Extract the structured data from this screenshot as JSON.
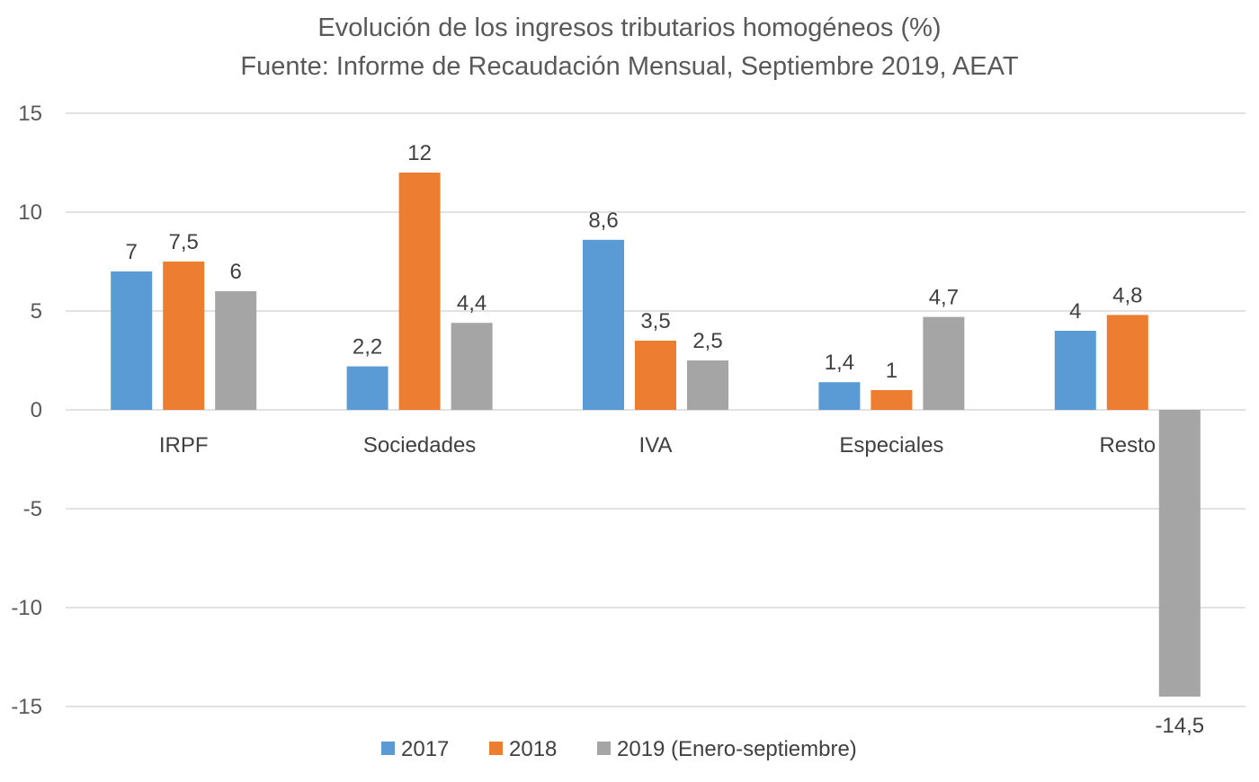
{
  "chart_data": {
    "type": "bar",
    "title": "Evolución de los ingresos tributarios homogéneos (%)",
    "subtitle": "Fuente: Informe de Recaudación Mensual, Septiembre 2019, AEAT",
    "xlabel": "",
    "ylabel": "",
    "ylim": [
      -15,
      15
    ],
    "yticks": [
      15,
      10,
      5,
      0,
      -5,
      -10,
      -15
    ],
    "ytick_labels": [
      "15",
      "10",
      "5",
      "0",
      "-5",
      "-10",
      "-15"
    ],
    "grid": true,
    "legend_position": "bottom",
    "categories": [
      "IRPF",
      "Sociedades",
      "IVA",
      "Especiales",
      "Resto"
    ],
    "series": [
      {
        "name": "2017",
        "color": "#5b9bd5",
        "values": [
          7,
          2.2,
          8.6,
          1.4,
          4
        ],
        "labels": [
          "7",
          "2,2",
          "8,6",
          "1,4",
          "4"
        ]
      },
      {
        "name": "2018",
        "color": "#ed7d31",
        "values": [
          7.5,
          12,
          3.5,
          1,
          4.8
        ],
        "labels": [
          "7,5",
          "12",
          "3,5",
          "1",
          "4,8"
        ]
      },
      {
        "name": "2019 (Enero-septiembre)",
        "color": "#a5a5a5",
        "values": [
          6,
          4.4,
          2.5,
          4.7,
          -14.5
        ],
        "labels": [
          "6",
          "4,4",
          "2,5",
          "4,7",
          "-14,5"
        ]
      }
    ]
  }
}
